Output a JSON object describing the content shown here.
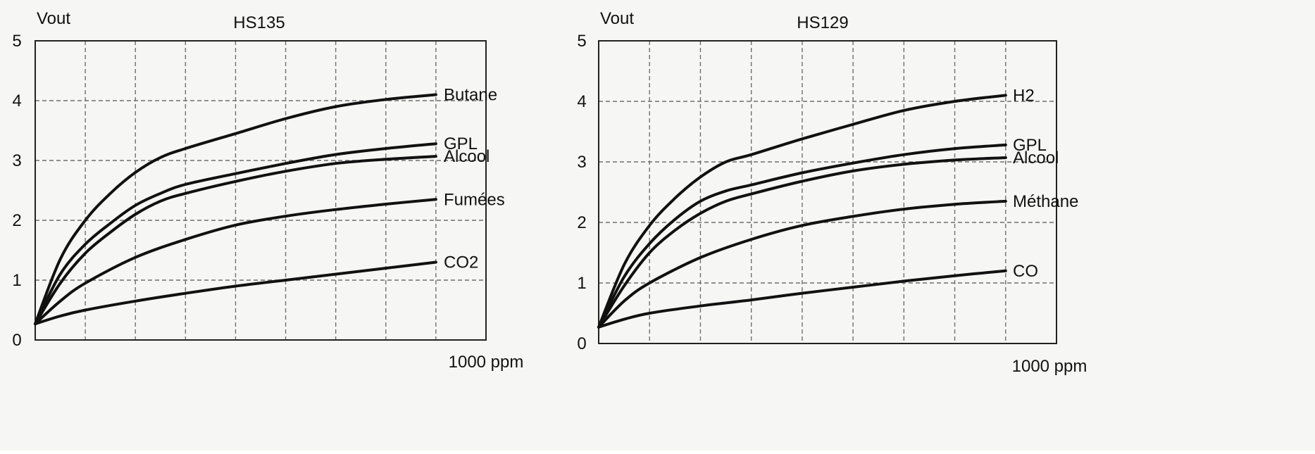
{
  "chart_data": [
    {
      "type": "line",
      "title": "HS135",
      "ylabel": "Vout",
      "xlabel": "1000 ppm",
      "ylim": [
        0,
        5
      ],
      "xlim": [
        0,
        9
      ],
      "x_gridlines": 9,
      "y_ticks": [
        "0",
        "1",
        "2",
        "3",
        "4",
        "5"
      ],
      "grid": true,
      "series": [
        {
          "name": "Butane",
          "x": [
            0,
            0.5,
            1,
            1.5,
            2,
            2.5,
            3,
            4,
            5,
            6,
            7,
            8
          ],
          "y": [
            0.27,
            1.35,
            2.0,
            2.45,
            2.8,
            3.05,
            3.2,
            3.45,
            3.7,
            3.9,
            4.02,
            4.1
          ]
        },
        {
          "name": "GPL",
          "x": [
            0,
            0.5,
            1,
            1.5,
            2,
            2.5,
            3,
            4,
            5,
            6,
            7,
            8
          ],
          "y": [
            0.27,
            1.1,
            1.6,
            1.95,
            2.25,
            2.45,
            2.6,
            2.78,
            2.95,
            3.1,
            3.2,
            3.28
          ]
        },
        {
          "name": "Alcool",
          "x": [
            0,
            0.5,
            1,
            1.5,
            2,
            2.5,
            3,
            4,
            5,
            6,
            7,
            8
          ],
          "y": [
            0.27,
            0.95,
            1.45,
            1.8,
            2.1,
            2.32,
            2.45,
            2.65,
            2.82,
            2.95,
            3.02,
            3.07
          ]
        },
        {
          "name": "Fumées",
          "x": [
            0,
            0.5,
            1,
            2,
            3,
            4,
            5,
            6,
            7,
            8
          ],
          "y": [
            0.27,
            0.65,
            0.95,
            1.38,
            1.68,
            1.92,
            2.07,
            2.18,
            2.27,
            2.35
          ]
        },
        {
          "name": "CO2",
          "x": [
            0,
            0.5,
            1,
            2,
            3,
            4,
            5,
            6,
            7,
            8
          ],
          "y": [
            0.27,
            0.4,
            0.5,
            0.65,
            0.78,
            0.9,
            1.0,
            1.1,
            1.2,
            1.3
          ]
        }
      ]
    },
    {
      "type": "line",
      "title": "HS129",
      "ylabel": "Vout",
      "xlabel": "1000 ppm",
      "ylim": [
        0,
        5
      ],
      "xlim": [
        0,
        9
      ],
      "x_gridlines": 9,
      "y_ticks": [
        "0",
        "1",
        "2",
        "3",
        "4",
        "5"
      ],
      "grid": true,
      "series": [
        {
          "name": "H2",
          "x": [
            0,
            0.5,
            1,
            1.5,
            2,
            2.5,
            3,
            4,
            5,
            6,
            7,
            8
          ],
          "y": [
            0.27,
            1.3,
            1.95,
            2.4,
            2.75,
            3.0,
            3.12,
            3.38,
            3.62,
            3.85,
            4.0,
            4.1
          ]
        },
        {
          "name": "GPL",
          "x": [
            0,
            0.5,
            1,
            1.5,
            2,
            2.5,
            3,
            4,
            5,
            6,
            7,
            8
          ],
          "y": [
            0.27,
            1.1,
            1.65,
            2.05,
            2.35,
            2.52,
            2.62,
            2.82,
            2.98,
            3.12,
            3.22,
            3.28
          ]
        },
        {
          "name": "Alcool",
          "x": [
            0,
            0.5,
            1,
            1.5,
            2,
            2.5,
            3,
            4,
            5,
            6,
            7,
            8
          ],
          "y": [
            0.27,
            0.95,
            1.5,
            1.87,
            2.15,
            2.35,
            2.47,
            2.68,
            2.85,
            2.96,
            3.03,
            3.07
          ]
        },
        {
          "name": "Méthane",
          "x": [
            0,
            0.5,
            1,
            2,
            3,
            4,
            5,
            6,
            7,
            8
          ],
          "y": [
            0.27,
            0.7,
            1.0,
            1.42,
            1.72,
            1.95,
            2.1,
            2.22,
            2.3,
            2.35
          ]
        },
        {
          "name": "CO",
          "x": [
            0,
            0.5,
            1,
            2,
            3,
            4,
            5,
            6,
            7,
            8
          ],
          "y": [
            0.27,
            0.4,
            0.5,
            0.62,
            0.72,
            0.83,
            0.93,
            1.03,
            1.12,
            1.2
          ]
        }
      ]
    }
  ]
}
